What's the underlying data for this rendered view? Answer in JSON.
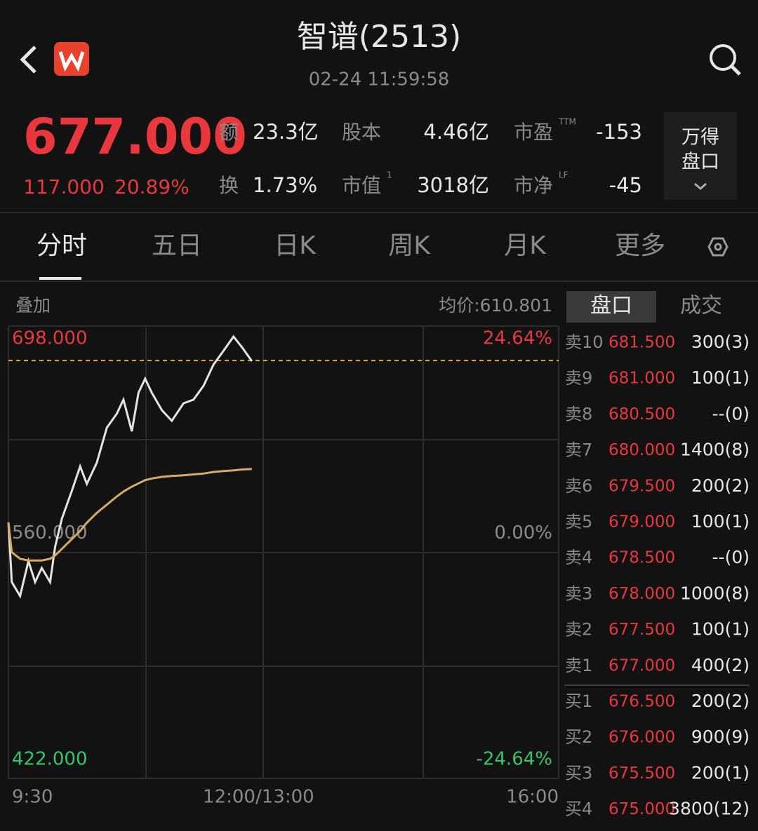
{
  "header": {
    "title": "智谱(2513)",
    "time": "02-24 11:59:58"
  },
  "quote": {
    "price": "677.000",
    "change": "117.000",
    "change_pct": "20.89%",
    "stats": [
      {
        "label": "额",
        "value": "23.3亿"
      },
      {
        "label": "股本",
        "value": "4.46亿"
      },
      {
        "label": "市盈",
        "sup": "TTM",
        "value": "-153"
      },
      {
        "label": "换",
        "value": "1.73%"
      },
      {
        "label": "市值",
        "sup": "1",
        "value": "3018亿"
      },
      {
        "label": "市净",
        "sup": "LF",
        "value": "-45"
      }
    ],
    "button": [
      "万得",
      "盘口"
    ]
  },
  "tabs": [
    "分时",
    "五日",
    "日K",
    "周K",
    "月K",
    "更多"
  ],
  "overlay": "叠加",
  "avg_label": "均价:610.801",
  "order_book": {
    "tabs": [
      "盘口",
      "成交"
    ],
    "rows": [
      [
        "卖10",
        "681.500",
        "300(3)"
      ],
      [
        "卖9",
        "681.000",
        "100(1)"
      ],
      [
        "卖8",
        "680.500",
        "--(0)"
      ],
      [
        "卖7",
        "680.000",
        "1400(8)"
      ],
      [
        "卖6",
        "679.500",
        "200(2)"
      ],
      [
        "卖5",
        "679.000",
        "100(1)"
      ],
      [
        "卖4",
        "678.500",
        "--(0)"
      ],
      [
        "卖3",
        "678.000",
        "1000(8)"
      ],
      [
        "卖2",
        "677.500",
        "100(1)"
      ],
      [
        "卖1",
        "677.000",
        "400(2)"
      ],
      [
        "买1",
        "676.500",
        "200(2)"
      ],
      [
        "买2",
        "676.000",
        "900(9)"
      ],
      [
        "买3",
        "675.500",
        "200(1)"
      ],
      [
        "买4",
        "675.000",
        "3800(12)"
      ]
    ]
  },
  "chart_data": {
    "type": "line",
    "x": [
      "9:30",
      "9:32",
      "9:37",
      "9:42",
      "9:46",
      "9:50",
      "9:55",
      "9:58",
      "10:02",
      "10:08",
      "10:13",
      "10:17",
      "10:23",
      "10:29",
      "10:35",
      "10:39",
      "10:44",
      "10:48",
      "10:52",
      "10:56",
      "11:02",
      "11:08",
      "11:15",
      "11:21",
      "11:27",
      "11:33",
      "11:39",
      "11:45",
      "11:50",
      "11:56"
    ],
    "series": [
      {
        "color": "#e4e4e4",
        "values": [
          578.2,
          541.8,
          533.3,
          554.6,
          541.8,
          550.4,
          541.8,
          563.2,
          580.3,
          597.4,
          612.4,
          601.7,
          614.6,
          636.0,
          644.5,
          653.1,
          633.8,
          657.3,
          665.9,
          657.3,
          646.7,
          640.2,
          650.9,
          653.1,
          661.6,
          674.5,
          683.0,
          691.6,
          685.2,
          676.6
        ]
      },
      {
        "color": "#d8a868",
        "values": [
          578.2,
          560,
          556,
          555,
          555,
          555,
          556,
          558,
          562,
          568,
          573,
          578,
          584,
          589,
          594,
          597,
          600,
          602,
          604,
          605,
          606,
          606.5,
          607,
          607.5,
          608,
          609,
          609.5,
          610,
          610.5,
          610.8
        ]
      }
    ],
    "ylim": [
      422,
      698
    ],
    "yticks": [
      {
        "value": 698,
        "label": "698.000"
      },
      {
        "value": 560,
        "label": "560.000"
      },
      {
        "value": 422,
        "label": "422.000"
      }
    ],
    "y2lim": [
      -24.64,
      24.64
    ],
    "y2ticks": [
      {
        "value": 24.64,
        "label": "24.64%"
      },
      {
        "value": 0,
        "label": "0.00%"
      },
      {
        "value": -24.64,
        "label": "-24.64%"
      }
    ],
    "xticks": [
      "9:30",
      "12:00/13:00",
      "16:00"
    ]
  }
}
